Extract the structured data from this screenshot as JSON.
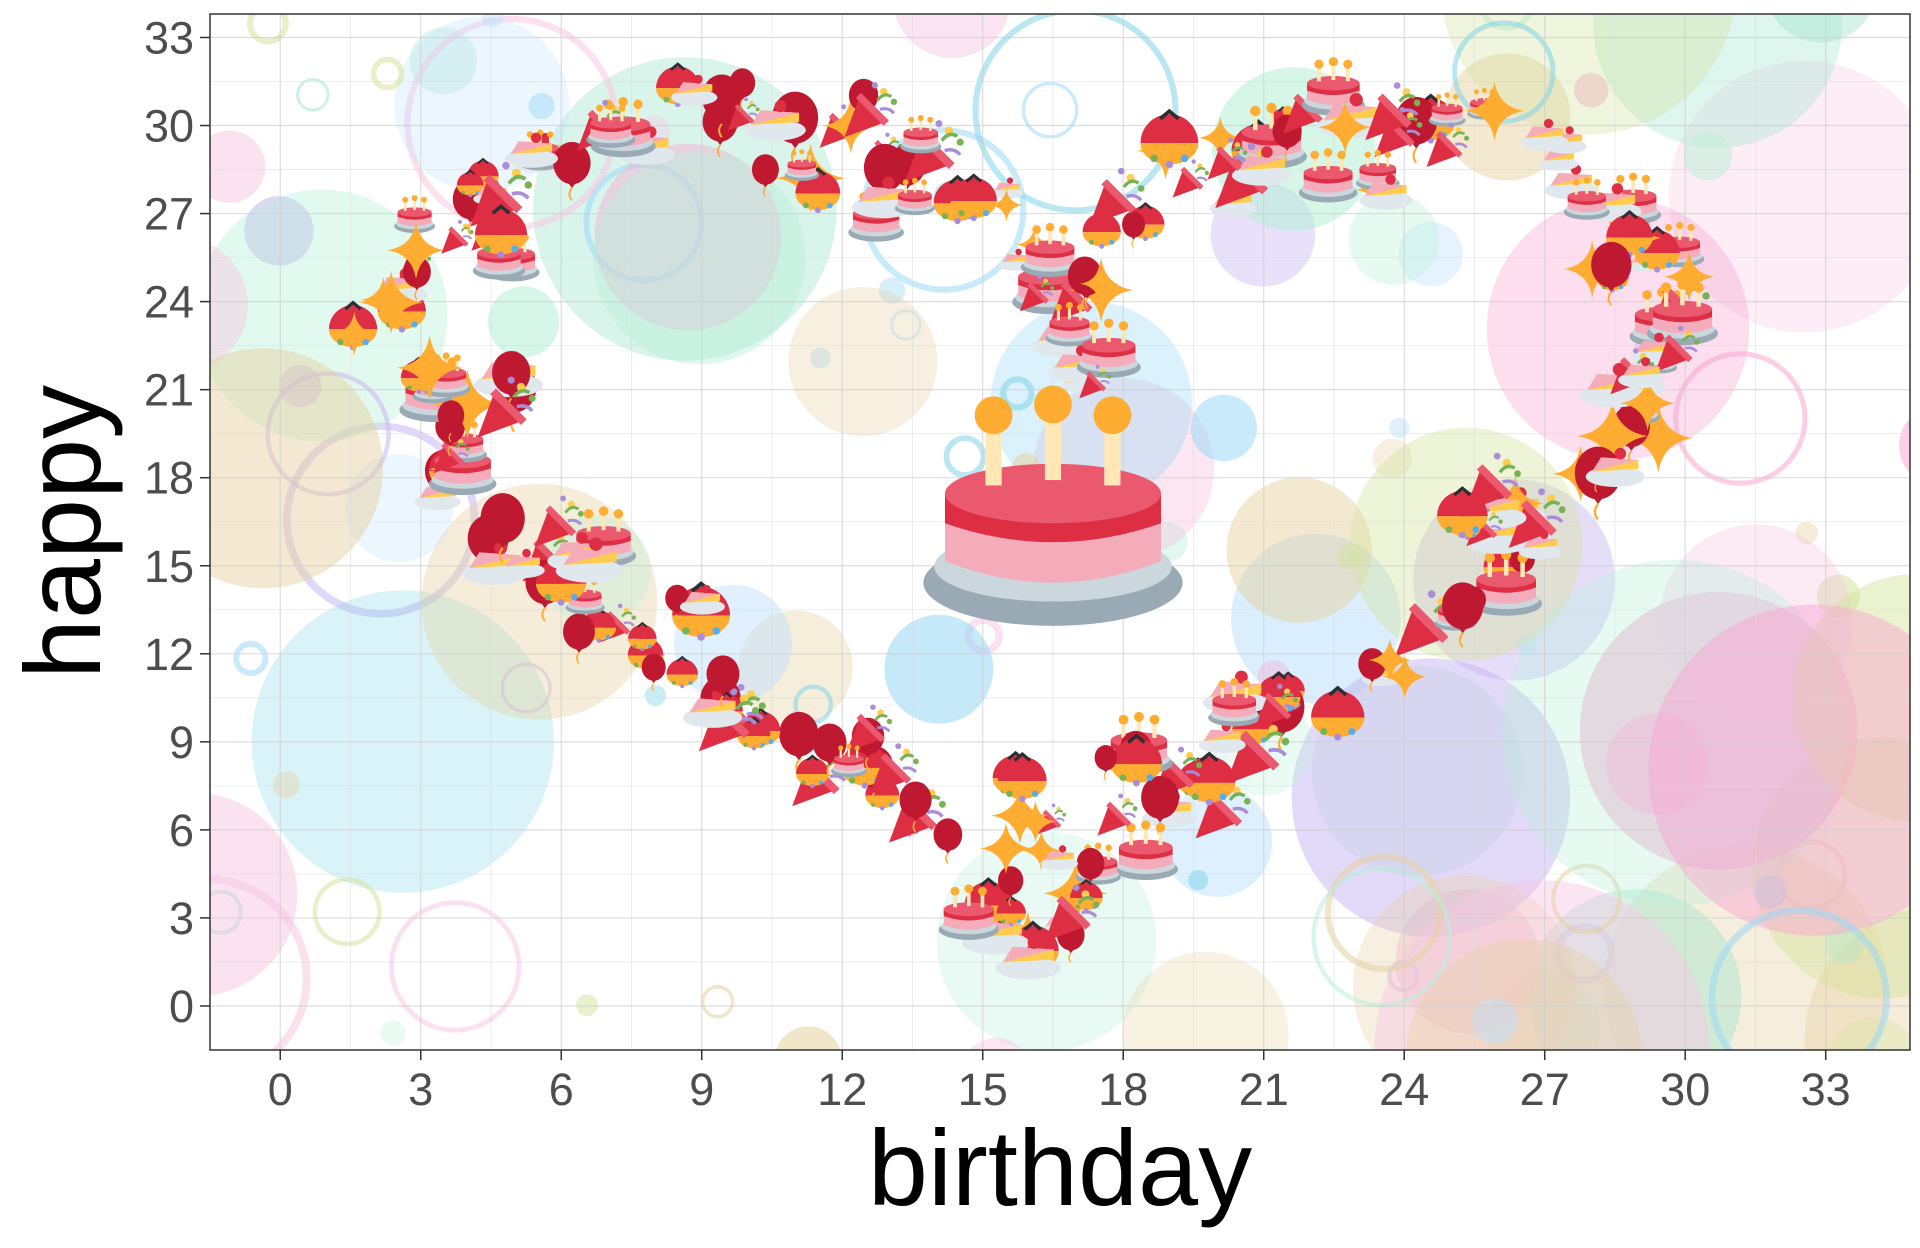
{
  "chart_data": {
    "type": "scatter",
    "xlabel": "birthday",
    "ylabel": "happy",
    "xlim": [
      -1.5,
      34.8
    ],
    "ylim": [
      -1.5,
      33.8
    ],
    "x_ticks": [
      0,
      3,
      6,
      9,
      12,
      15,
      18,
      21,
      24,
      27,
      30,
      33
    ],
    "y_ticks": [
      0,
      3,
      6,
      9,
      12,
      15,
      18,
      21,
      24,
      27,
      30,
      33
    ],
    "x_tick_labels": [
      "0",
      "3",
      "6",
      "9",
      "12",
      "15",
      "18",
      "21",
      "24",
      "27",
      "30",
      "33"
    ],
    "y_tick_labels": [
      "0",
      "3",
      "6",
      "9",
      "12",
      "15",
      "18",
      "21",
      "24",
      "27",
      "30",
      "33"
    ],
    "grid": true,
    "legend": "none",
    "marker_icons": [
      "birthday-cake-icon",
      "party-popper-icon",
      "balloon-icon",
      "sparkle-icon",
      "cake-slice-icon",
      "confetti-ball-icon"
    ],
    "series": [
      {
        "marker": "heart-outline",
        "points": [
          [
            3.0,
            24.5
          ],
          [
            3.5,
            26.5
          ],
          [
            4.5,
            28.0
          ],
          [
            6.0,
            29.0
          ],
          [
            7.5,
            30.0
          ],
          [
            9.0,
            30.5
          ],
          [
            10.5,
            30.5
          ],
          [
            12.0,
            30.0
          ],
          [
            13.5,
            29.0
          ],
          [
            15.0,
            27.5
          ],
          [
            16.0,
            25.5
          ],
          [
            16.5,
            23.5
          ],
          [
            17.5,
            22.0
          ],
          [
            17.0,
            25.0
          ],
          [
            18.0,
            27.0
          ],
          [
            19.5,
            29.0
          ],
          [
            21.0,
            30.0
          ],
          [
            22.5,
            30.5
          ],
          [
            24.0,
            30.5
          ],
          [
            25.5,
            30.0
          ],
          [
            27.0,
            29.0
          ],
          [
            28.5,
            27.5
          ],
          [
            29.5,
            26.0
          ],
          [
            30.0,
            24.0
          ],
          [
            29.5,
            22.0
          ],
          [
            29.0,
            20.0
          ],
          [
            28.0,
            18.0
          ],
          [
            27.0,
            16.5
          ],
          [
            26.0,
            15.0
          ],
          [
            25.0,
            13.5
          ],
          [
            23.5,
            12.0
          ],
          [
            22.0,
            10.5
          ],
          [
            20.5,
            9.0
          ],
          [
            19.5,
            7.5
          ],
          [
            18.5,
            6.0
          ],
          [
            17.5,
            4.5
          ],
          [
            16.5,
            3.0
          ],
          [
            15.5,
            2.5
          ],
          [
            15.0,
            4.0
          ],
          [
            14.0,
            6.0
          ],
          [
            13.0,
            7.5
          ],
          [
            11.5,
            8.5
          ],
          [
            10.0,
            9.5
          ],
          [
            9.0,
            10.5
          ],
          [
            8.0,
            12.0
          ],
          [
            7.0,
            13.0
          ],
          [
            6.0,
            14.5
          ],
          [
            5.0,
            16.0
          ],
          [
            4.0,
            17.5
          ],
          [
            3.5,
            19.0
          ],
          [
            3.5,
            20.5
          ],
          [
            3.0,
            22.0
          ],
          [
            2.0,
            23.5
          ],
          [
            5.0,
            21.0
          ],
          [
            6.5,
            16.0
          ],
          [
            8.5,
            14.0
          ],
          [
            12.0,
            9.0
          ],
          [
            16.0,
            5.5
          ],
          [
            21.0,
            11.0
          ],
          [
            26.5,
            16.5
          ],
          [
            29.0,
            21.0
          ],
          [
            28.5,
            25.5
          ],
          [
            20.5,
            28.0
          ],
          [
            11.0,
            28.5
          ],
          [
            5.0,
            26.0
          ],
          [
            13.0,
            27.5
          ],
          [
            23.0,
            28.5
          ],
          [
            15.5,
            7.0
          ],
          [
            18.0,
            9.0
          ],
          [
            25.5,
            17.0
          ]
        ]
      },
      {
        "marker": "birthday-cake-icon",
        "points": [
          [
            16.5,
            17.0
          ]
        ]
      }
    ]
  }
}
